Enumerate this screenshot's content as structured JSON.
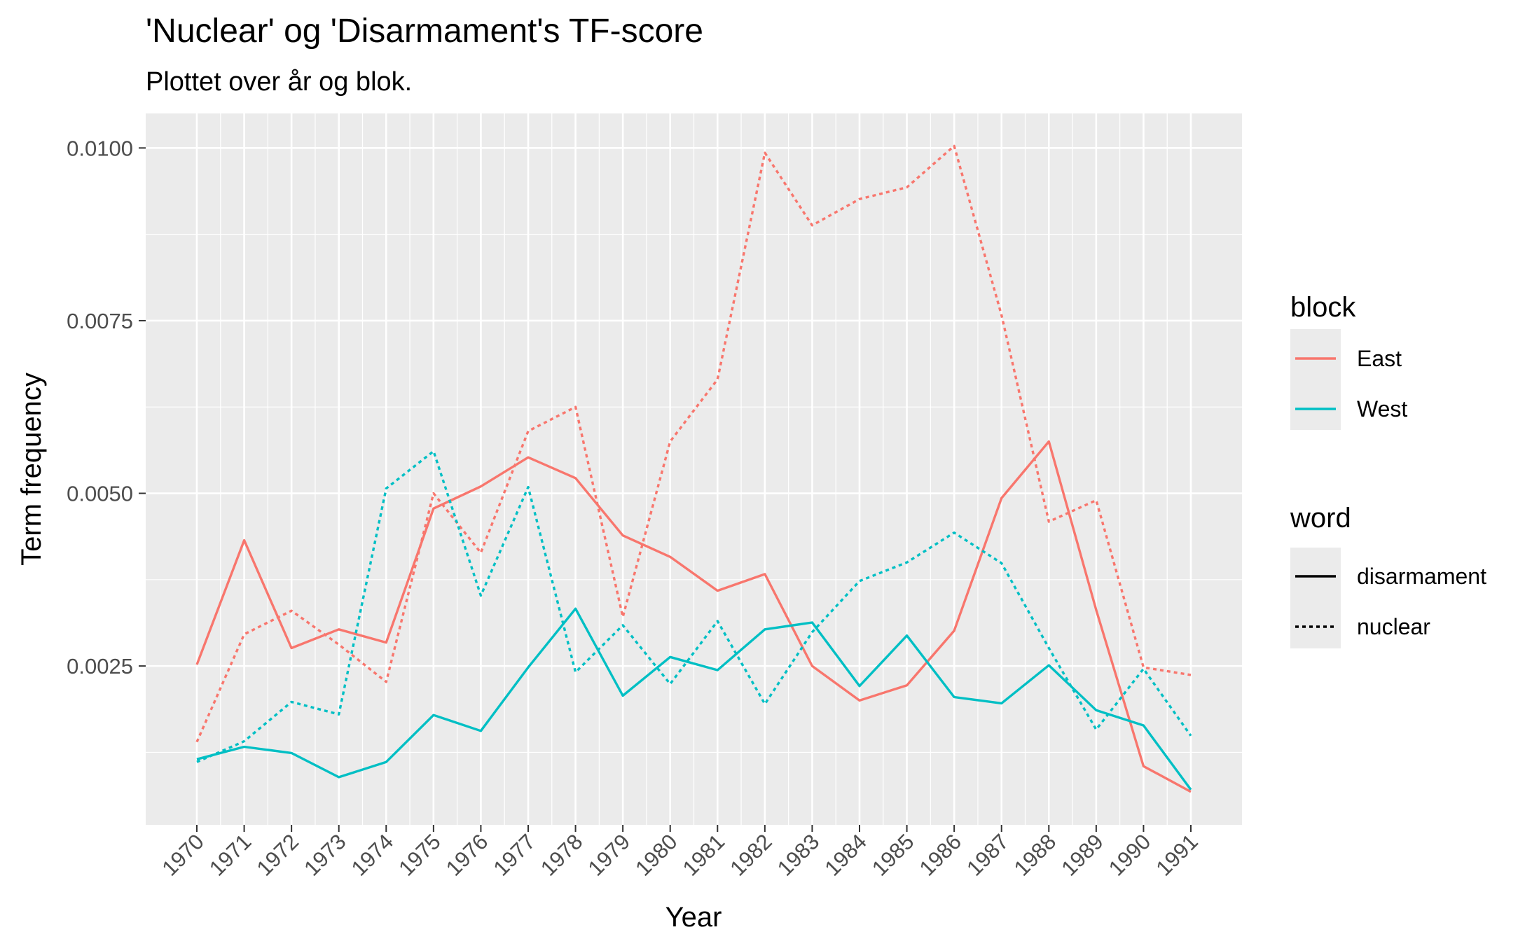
{
  "chart_data": {
    "type": "line",
    "title": "'Nuclear' og 'Disarmament's TF-score",
    "subtitle": "Plottet over år og blok.",
    "xlabel": "Year",
    "ylabel": "Term frequency",
    "x": [
      "1970",
      "1971",
      "1972",
      "1973",
      "1974",
      "1975",
      "1976",
      "1977",
      "1978",
      "1979",
      "1980",
      "1981",
      "1982",
      "1983",
      "1984",
      "1985",
      "1986",
      "1987",
      "1988",
      "1989",
      "1990",
      "1991"
    ],
    "ylim": [
      0.0002,
      0.0105
    ],
    "y_ticks": [
      0.0025,
      0.005,
      0.0075,
      0.01
    ],
    "y_tick_labels": [
      "0.0025",
      "0.0050",
      "0.0075",
      "0.0100"
    ],
    "grid": true,
    "series": [
      {
        "block": "East",
        "word": "disarmament",
        "color": "#F8766D",
        "dash": "solid",
        "values": [
          0.00252,
          0.00432,
          0.00276,
          0.00303,
          0.00284,
          0.00478,
          0.0051,
          0.00552,
          0.00522,
          0.00439,
          0.00408,
          0.00359,
          0.00383,
          0.0025,
          0.002,
          0.00222,
          0.00301,
          0.00493,
          0.00575,
          0.00331,
          0.00105,
          0.00068
        ]
      },
      {
        "block": "West",
        "word": "disarmament",
        "color": "#00BFC4",
        "dash": "solid",
        "values": [
          0.00115,
          0.00133,
          0.00124,
          0.00089,
          0.00111,
          0.00179,
          0.00156,
          0.00248,
          0.00333,
          0.00207,
          0.00263,
          0.00244,
          0.00303,
          0.00313,
          0.00221,
          0.00294,
          0.00205,
          0.00196,
          0.00251,
          0.00186,
          0.00164,
          0.00071
        ]
      },
      {
        "block": "East",
        "word": "nuclear",
        "color": "#F8766D",
        "dash": "dashed",
        "values": [
          0.0014,
          0.00296,
          0.0033,
          0.00281,
          0.00227,
          0.005,
          0.00414,
          0.0059,
          0.00625,
          0.00321,
          0.00575,
          0.00665,
          0.00993,
          0.00888,
          0.00926,
          0.00943,
          0.01003,
          0.00758,
          0.00459,
          0.0049,
          0.00248,
          0.00237
        ]
      },
      {
        "block": "West",
        "word": "nuclear",
        "color": "#00BFC4",
        "dash": "dashed",
        "values": [
          0.00111,
          0.00141,
          0.00198,
          0.0018,
          0.00507,
          0.00561,
          0.00352,
          0.00509,
          0.00241,
          0.00309,
          0.00224,
          0.00315,
          0.00195,
          0.00299,
          0.00373,
          0.004,
          0.00443,
          0.00399,
          0.00276,
          0.00158,
          0.00246,
          0.00149
        ]
      }
    ],
    "legends": [
      {
        "title": "block",
        "entries": [
          {
            "label": "East",
            "color": "#F8766D",
            "dash": "solid"
          },
          {
            "label": "West",
            "color": "#00BFC4",
            "dash": "solid"
          }
        ]
      },
      {
        "title": "word",
        "entries": [
          {
            "label": "disarmament",
            "color": "#000000",
            "dash": "solid"
          },
          {
            "label": "nuclear",
            "color": "#000000",
            "dash": "dashed"
          }
        ]
      }
    ],
    "legend_position": "right",
    "panel_background": "#EBEBEB",
    "grid_color": "#FFFFFF"
  }
}
